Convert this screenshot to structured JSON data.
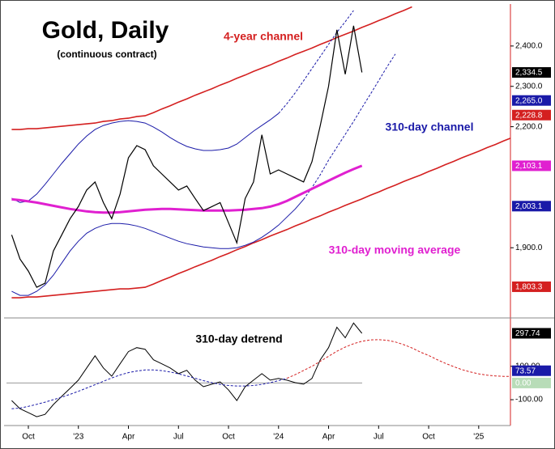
{
  "chart_data": [
    {
      "type": "line",
      "title": "Gold, Daily",
      "subtitle": "(continuous contract)",
      "ylim": [
        1730,
        2500
      ],
      "yticks": [
        {
          "value": 1900,
          "label": "1,900.0"
        },
        {
          "value": 2200,
          "label": "2,200.0"
        },
        {
          "value": 2300,
          "label": "2,300.0"
        },
        {
          "value": 2400,
          "label": "2,400.0"
        }
      ],
      "markers": [
        {
          "value": 2334.5,
          "label": "2,334.5",
          "color": "#000000"
        },
        {
          "value": 2265.0,
          "label": "2,265.0",
          "color": "#1a1aa8"
        },
        {
          "value": 2228.8,
          "label": "2,228.8",
          "color": "#d42020"
        },
        {
          "value": 2103.1,
          "label": "2,103.1",
          "color": "#e020d0"
        },
        {
          "value": 2003.1,
          "label": "2,003.1",
          "color": "#1a1aa8"
        },
        {
          "value": 1803.3,
          "label": "1,803.3",
          "color": "#d42020"
        }
      ],
      "series": [
        {
          "name": "4-year channel",
          "color": "#d42020",
          "values": [
            2193,
            2193,
            2195,
            2195,
            2197,
            2199,
            2201,
            2203,
            2205,
            2207,
            2209,
            2213,
            2215,
            2219,
            2221,
            2225,
            2227,
            2235,
            2244,
            2252,
            2261,
            2269,
            2278,
            2286,
            2294,
            2303,
            2311,
            2320,
            2328,
            2337,
            2345,
            2353,
            2362,
            2370,
            2379,
            2387,
            2395,
            2404,
            2412,
            2421,
            2429,
            2437,
            2446,
            2454,
            2463,
            2471,
            2480,
            2488,
            2497,
            null,
            null,
            null,
            null,
            null,
            null,
            null,
            null,
            null,
            null,
            null,
            null
          ],
          "values_lower": [
            1776,
            1776,
            1778,
            1778,
            1780,
            1782,
            1784,
            1786,
            1788,
            1790,
            1792,
            1794,
            1796,
            1798,
            1798,
            1800,
            1802,
            1810,
            1819,
            1827,
            1836,
            1844,
            1853,
            1861,
            1869,
            1878,
            1886,
            1895,
            1903,
            1912,
            1920,
            1929,
            1937,
            1945,
            1954,
            1962,
            1971,
            1979,
            1988,
            1996,
            2005,
            2013,
            2021,
            2030,
            2038,
            2047,
            2055,
            2064,
            2072,
            2080,
            2089,
            2097,
            2106,
            2114,
            2123,
            2131,
            2139,
            2148,
            2156,
            2165,
            2173
          ]
        },
        {
          "name": "310-day channel",
          "color": "#1a1aa8",
          "values": [
            2023,
            2012,
            2016,
            2033,
            2057,
            2083,
            2109,
            2133,
            2157,
            2177,
            2193,
            2203,
            2209,
            2213,
            2215,
            2213,
            2209,
            2199,
            2187,
            2173,
            2161,
            2151,
            2145,
            2141,
            2141,
            2143,
            2147,
            2157,
            2173,
            2189,
            2203,
            2217,
            2233,
            null,
            null,
            null,
            null,
            null,
            null,
            null,
            null,
            null,
            null,
            null,
            null,
            null,
            null,
            null,
            null,
            null,
            null,
            null,
            null,
            null,
            null,
            null,
            null,
            null,
            null,
            null,
            null
          ],
          "projection": [
            null,
            null,
            null,
            null,
            null,
            null,
            null,
            null,
            null,
            null,
            null,
            null,
            null,
            null,
            null,
            null,
            null,
            null,
            null,
            null,
            null,
            null,
            null,
            null,
            null,
            null,
            null,
            null,
            null,
            null,
            null,
            null,
            2233,
            2257,
            2284,
            2314,
            2344,
            2374,
            2404,
            2434,
            2460,
            2488,
            null,
            null,
            null,
            null,
            null,
            null,
            null,
            null,
            null,
            null,
            null,
            null,
            null,
            null,
            null,
            null,
            null,
            null,
            null
          ],
          "values_lower": [
            1792,
            1782,
            1782,
            1792,
            1808,
            1832,
            1862,
            1892,
            1916,
            1936,
            1948,
            1956,
            1960,
            1960,
            1958,
            1954,
            1948,
            1940,
            1932,
            1924,
            1916,
            1910,
            1906,
            1902,
            1900,
            1898,
            1898,
            1900,
            1906,
            1914,
            1926,
            1940,
            1956,
            1976,
            1996,
            2020,
            null,
            null,
            null,
            null,
            null,
            null,
            null,
            null,
            null,
            null,
            null,
            null,
            null,
            null,
            null,
            null,
            null,
            null,
            null,
            null,
            null,
            null,
            null,
            null,
            null
          ],
          "projection_lower": [
            null,
            null,
            null,
            null,
            null,
            null,
            null,
            null,
            null,
            null,
            null,
            null,
            null,
            null,
            null,
            null,
            null,
            null,
            null,
            null,
            null,
            null,
            null,
            null,
            null,
            null,
            null,
            null,
            null,
            null,
            null,
            null,
            null,
            null,
            null,
            2020,
            2049,
            2081,
            2117,
            2149,
            2181,
            2213,
            2247,
            2280,
            2314,
            2348,
            2380,
            null,
            null,
            null,
            null,
            null,
            null,
            null,
            null,
            null,
            null,
            null,
            null,
            null,
            null
          ]
        },
        {
          "name": "310-day moving average",
          "color": "#e020d0",
          "values": [
            2020,
            2018,
            2015,
            2012,
            2008,
            2004,
            2000,
            1996,
            1993,
            1990,
            1988,
            1987,
            1987,
            1988,
            1990,
            1992,
            1994,
            1995,
            1996,
            1996,
            1995,
            1994,
            1993,
            1992,
            1992,
            1992,
            1992,
            1993,
            1994,
            1996,
            1998,
            2002,
            2008,
            2016,
            2026,
            2036,
            2046,
            2056,
            2066,
            2076,
            2086,
            2095,
            2103.1,
            null,
            null,
            null,
            null,
            null,
            null,
            null,
            null,
            null,
            null,
            null,
            null,
            null,
            null,
            null,
            null,
            null,
            null
          ]
        },
        {
          "color": "#000000",
          "values": [
            1932,
            1872,
            1842,
            1802,
            1812,
            1892,
            1932,
            1972,
            2002,
            2043,
            2063,
            2012,
            1972,
            2033,
            2123,
            2153,
            2143,
            2103,
            2083,
            2063,
            2043,
            2053,
            2022,
            1992,
            2002,
            2012,
            1962,
            1912,
            2022,
            2063,
            2180,
            2083,
            2093,
            2083,
            2073,
            2063,
            2113,
            2203,
            2300,
            2440,
            2330,
            2450,
            2334.5,
            null,
            null,
            null,
            null,
            null,
            null,
            null,
            null,
            null,
            null,
            null,
            null,
            null,
            null,
            null,
            null,
            null,
            null
          ]
        }
      ]
    },
    {
      "type": "line",
      "title": "310-day detrend",
      "categories": [
        null,
        null,
        "Oct",
        null,
        null,
        null,
        null,
        null,
        "'23",
        null,
        null,
        null,
        null,
        null,
        "Apr",
        null,
        null,
        null,
        null,
        null,
        "Jul",
        null,
        null,
        null,
        null,
        null,
        "Oct",
        null,
        null,
        null,
        null,
        null,
        "'24",
        null,
        null,
        null,
        null,
        null,
        "Apr",
        null,
        null,
        null,
        null,
        null,
        "Jul",
        null,
        null,
        null,
        null,
        null,
        "Oct",
        null,
        null,
        null,
        null,
        null,
        "'25",
        null,
        null,
        null,
        null
      ],
      "ylim": [
        -250,
        380
      ],
      "yticks": [
        {
          "value": 100,
          "label": "100.00"
        },
        {
          "value": -100,
          "label": "-100.00"
        }
      ],
      "reference_line": 0,
      "markers": [
        {
          "value": 297.74,
          "label": "297.74",
          "color": "#000000"
        },
        {
          "value": 73.57,
          "label": "73.57",
          "color": "#1a1aa8"
        },
        {
          "value": 0,
          "label": "0.00",
          "color": "#b8dcb8"
        }
      ],
      "series": [
        {
          "color": "#000000",
          "style": "solid",
          "values": [
            -105,
            -154,
            -178,
            -202,
            -188,
            -129,
            -80,
            -32,
            17,
            90,
            163,
            90,
            41,
            115,
            188,
            212,
            202,
            139,
            115,
            90,
            56,
            76,
            17,
            -22,
            -7,
            7,
            -41,
            -105,
            -22,
            17,
            56,
            17,
            27,
            17,
            2,
            -7,
            27,
            139,
            212,
            334,
            271,
            359,
            297.74,
            null,
            null,
            null,
            null,
            null,
            null,
            null,
            null,
            null,
            null,
            null,
            null,
            null,
            null,
            null,
            null,
            null,
            null
          ]
        },
        {
          "color": "#1a1aa8",
          "style": "dashed",
          "values": [
            -154,
            -150,
            -140,
            -128,
            -115,
            -100,
            -85,
            -68,
            -50,
            -30,
            -10,
            10,
            30,
            48,
            62,
            72,
            78,
            78,
            74,
            66,
            55,
            42,
            28,
            14,
            2,
            -8,
            -15,
            -18,
            -18,
            -15,
            -8,
            2,
            14,
            28,
            null,
            null,
            null,
            null,
            null,
            null,
            null,
            null,
            null,
            null,
            null,
            null,
            null,
            null,
            null,
            null,
            null,
            null,
            null,
            null,
            null,
            null,
            null,
            null,
            null,
            null,
            null
          ]
        },
        {
          "color": "#d42020",
          "style": "dashed",
          "values": [
            null,
            null,
            null,
            null,
            null,
            null,
            null,
            null,
            null,
            null,
            null,
            null,
            null,
            null,
            null,
            null,
            null,
            null,
            null,
            null,
            null,
            null,
            null,
            null,
            null,
            null,
            null,
            null,
            null,
            null,
            null,
            null,
            null,
            28,
            50,
            75,
            100,
            130,
            160,
            190,
            215,
            235,
            250,
            258,
            260,
            256,
            246,
            230,
            210,
            185,
            165,
            140,
            118,
            98,
            80,
            66,
            55,
            47,
            42,
            40,
            40
          ]
        }
      ]
    }
  ]
}
